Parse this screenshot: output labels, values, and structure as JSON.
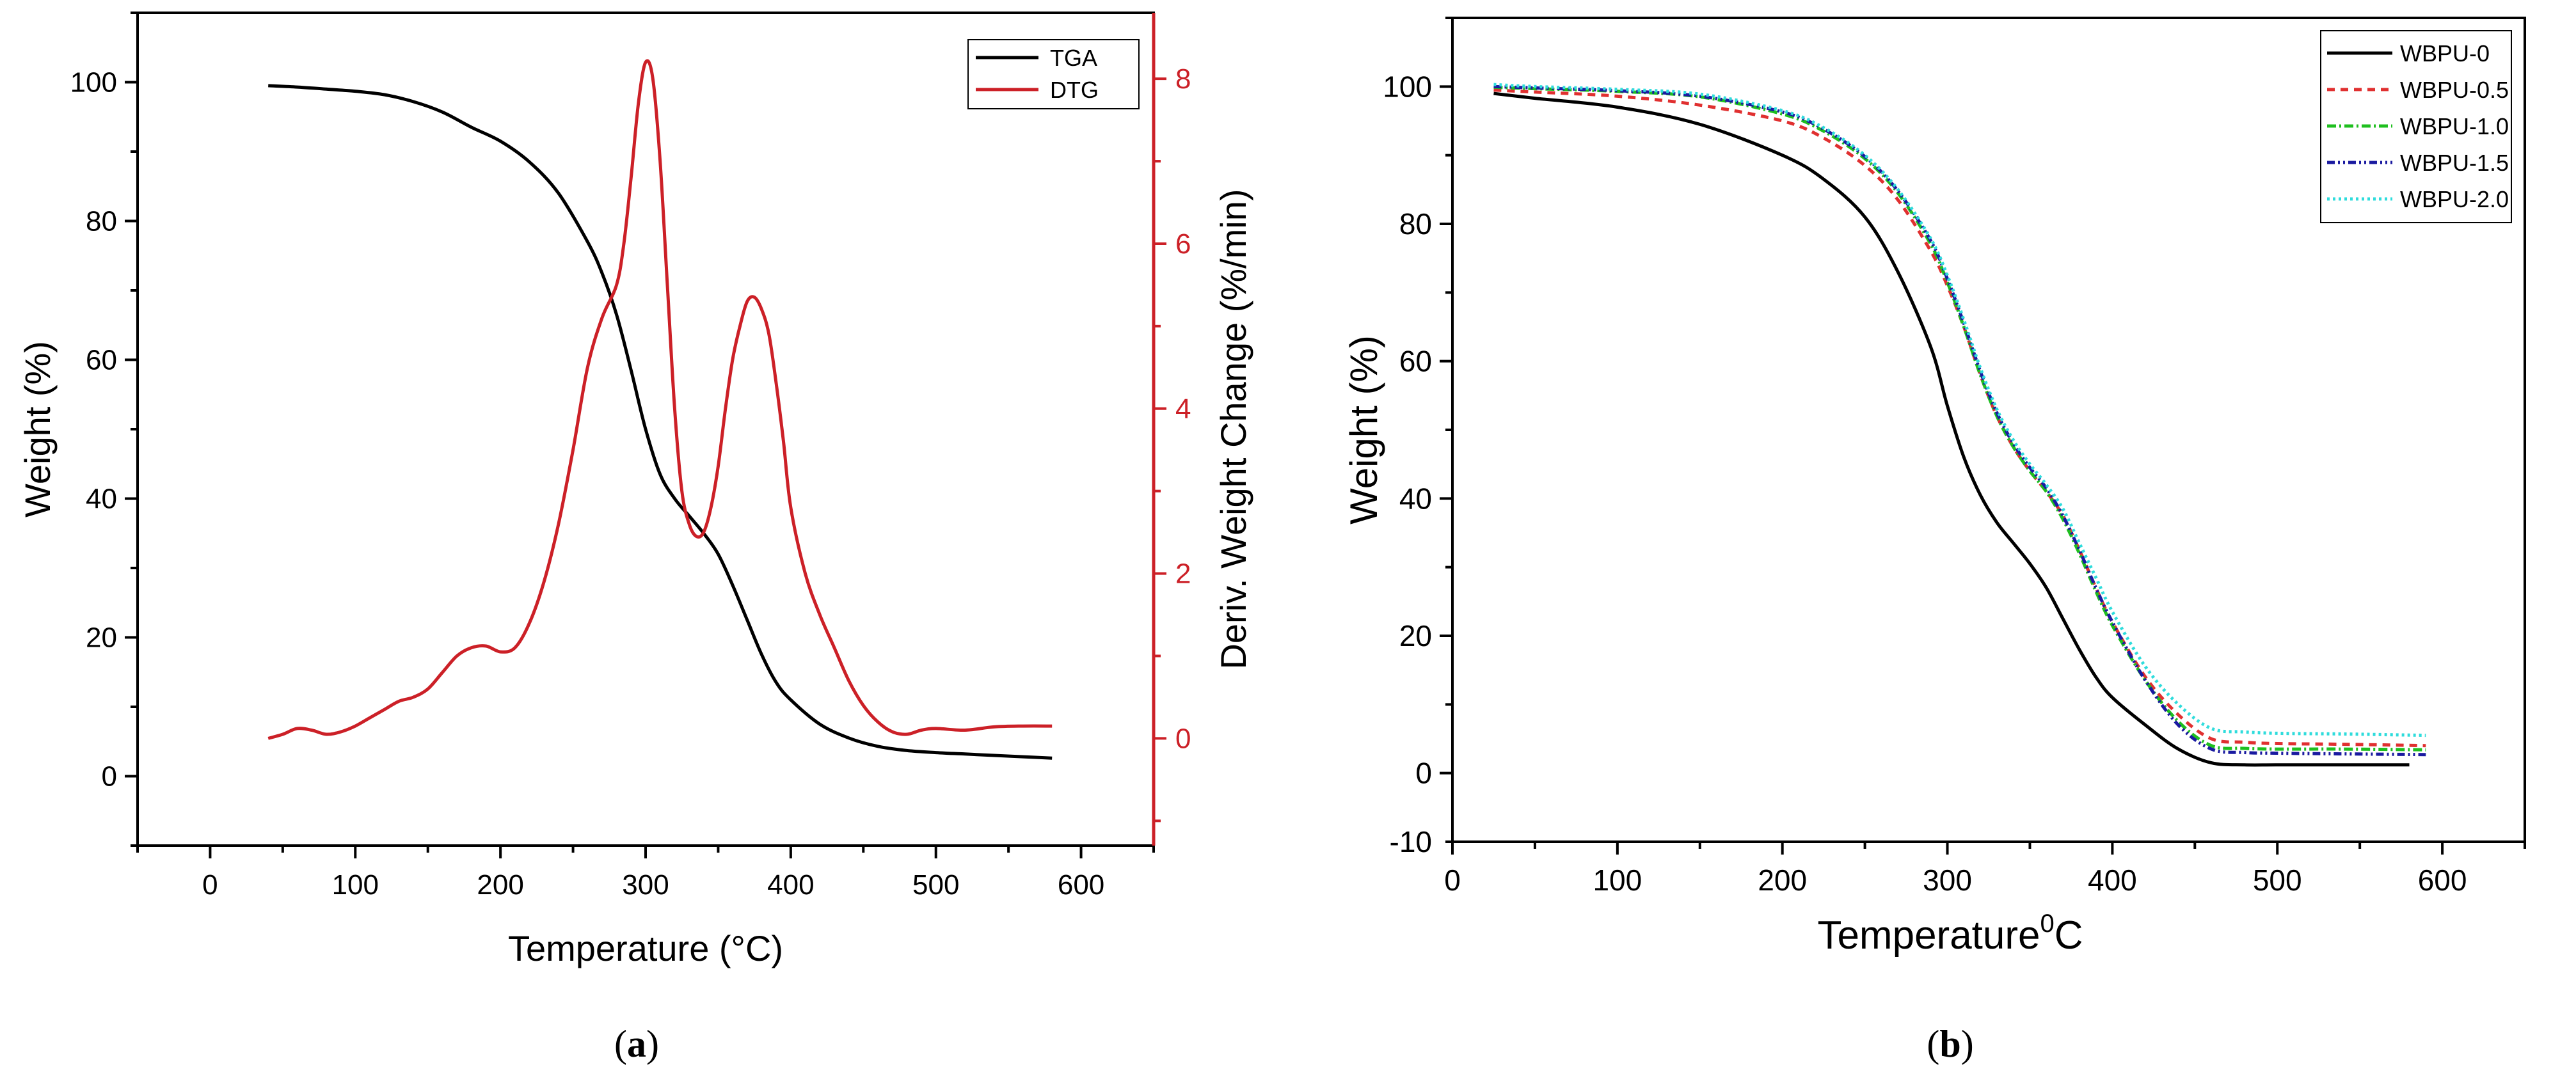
{
  "figure": {
    "panel_a_caption": "a",
    "panel_b_caption": "b"
  },
  "chart_data": [
    {
      "id": "a",
      "type": "line",
      "title": "",
      "xlabel": "Temperature (°C)",
      "ylabel": "Weight (%)",
      "y2label": "Deriv. Weight Change (%/min)",
      "xlim": [
        -50,
        650
      ],
      "ylim": [
        -10,
        110
      ],
      "y2lim": [
        -1.3,
        8.8
      ],
      "xticks": [
        0,
        100,
        200,
        300,
        400,
        500,
        600
      ],
      "yticks": [
        0,
        20,
        40,
        60,
        80,
        100
      ],
      "y2ticks": [
        0,
        2,
        4,
        6,
        8
      ],
      "legend_position": "top-right",
      "grid": false,
      "series": [
        {
          "name": "TGA",
          "axis": "left",
          "color": "#000000",
          "dash": "solid",
          "x": [
            40,
            60,
            80,
            100,
            120,
            140,
            160,
            180,
            200,
            220,
            240,
            260,
            270,
            280,
            290,
            300,
            310,
            320,
            330,
            340,
            350,
            360,
            370,
            380,
            390,
            400,
            420,
            440,
            460,
            480,
            500,
            520,
            540,
            560,
            580
          ],
          "y": [
            99.5,
            99.3,
            99.0,
            98.7,
            98.2,
            97.2,
            95.7,
            93.5,
            91.5,
            88.5,
            84.0,
            77.0,
            72.5,
            66.5,
            58.5,
            50.0,
            43.5,
            40.0,
            37.5,
            35.0,
            32.0,
            27.5,
            22.5,
            17.5,
            13.5,
            11.0,
            7.5,
            5.5,
            4.3,
            3.7,
            3.4,
            3.2,
            3.0,
            2.8,
            2.6
          ]
        },
        {
          "name": "DTG",
          "axis": "right",
          "color": "#cc2027",
          "dash": "solid",
          "x": [
            40,
            50,
            60,
            70,
            80,
            90,
            100,
            110,
            120,
            130,
            140,
            150,
            160,
            170,
            180,
            190,
            200,
            210,
            220,
            230,
            240,
            250,
            260,
            270,
            280,
            285,
            290,
            295,
            300,
            305,
            310,
            315,
            320,
            325,
            330,
            335,
            340,
            345,
            350,
            355,
            360,
            365,
            370,
            375,
            380,
            385,
            390,
            395,
            400,
            410,
            420,
            430,
            440,
            450,
            460,
            470,
            480,
            490,
            500,
            520,
            540,
            560,
            580
          ],
          "y": [
            0.0,
            0.05,
            0.12,
            0.1,
            0.05,
            0.08,
            0.15,
            0.25,
            0.35,
            0.45,
            0.5,
            0.6,
            0.8,
            1.0,
            1.1,
            1.12,
            1.05,
            1.1,
            1.4,
            1.9,
            2.6,
            3.5,
            4.5,
            5.1,
            5.5,
            6.0,
            6.8,
            7.7,
            8.2,
            8.0,
            7.0,
            5.5,
            4.0,
            3.0,
            2.6,
            2.45,
            2.5,
            2.8,
            3.3,
            4.0,
            4.6,
            5.0,
            5.3,
            5.35,
            5.2,
            4.9,
            4.3,
            3.6,
            2.8,
            2.0,
            1.5,
            1.1,
            0.7,
            0.4,
            0.2,
            0.08,
            0.05,
            0.1,
            0.12,
            0.1,
            0.14,
            0.15,
            0.15
          ]
        }
      ]
    },
    {
      "id": "b",
      "type": "line",
      "title": "",
      "xlabel": "Temperature",
      "xlabel_sup": "0",
      "xlabel_suffix": "C",
      "ylabel": "Weight (%)",
      "xlim": [
        0,
        650
      ],
      "ylim": [
        -10,
        110
      ],
      "xticks": [
        0,
        100,
        200,
        300,
        400,
        500,
        600
      ],
      "yticks": [
        0,
        20,
        40,
        60,
        80,
        100
      ],
      "legend_position": "top-right",
      "grid": false,
      "series": [
        {
          "name": "WBPU-0",
          "color": "#000000",
          "dash": "solid",
          "x": [
            25,
            50,
            100,
            150,
            200,
            225,
            250,
            270,
            290,
            300,
            310,
            320,
            330,
            340,
            350,
            360,
            370,
            380,
            390,
            400,
            420,
            440,
            460,
            480,
            500,
            540,
            580
          ],
          "y": [
            99.0,
            98.3,
            97.0,
            94.5,
            90.0,
            86.5,
            81.0,
            73.0,
            62.0,
            53.5,
            46.0,
            40.5,
            36.5,
            33.5,
            30.5,
            27.0,
            22.5,
            18.0,
            14.0,
            11.0,
            7.0,
            3.5,
            1.5,
            1.2,
            1.2,
            1.2,
            1.2
          ]
        },
        {
          "name": "WBPU-0.5",
          "color": "#e03030",
          "dash": "12,9",
          "x": [
            25,
            50,
            100,
            150,
            200,
            225,
            250,
            270,
            290,
            300,
            310,
            320,
            330,
            340,
            350,
            360,
            370,
            380,
            390,
            400,
            420,
            440,
            460,
            480,
            500,
            540,
            590
          ],
          "y": [
            99.5,
            99.2,
            98.6,
            97.3,
            95.0,
            92.5,
            88.5,
            83.5,
            76.0,
            71.0,
            65.0,
            58.0,
            52.0,
            47.5,
            44.0,
            41.0,
            37.5,
            32.5,
            27.0,
            22.0,
            14.0,
            8.5,
            5.0,
            4.5,
            4.3,
            4.2,
            4.0
          ]
        },
        {
          "name": "WBPU-1.0",
          "color": "#1fbf1f",
          "dash": "14,5,3,5",
          "x": [
            25,
            50,
            100,
            150,
            200,
            225,
            250,
            270,
            290,
            300,
            310,
            320,
            330,
            340,
            350,
            360,
            370,
            380,
            390,
            400,
            420,
            440,
            460,
            480,
            500,
            540,
            590
          ],
          "y": [
            99.9,
            99.7,
            99.3,
            98.5,
            96.0,
            93.5,
            89.5,
            84.5,
            77.0,
            71.5,
            65.0,
            58.0,
            52.0,
            47.5,
            44.0,
            41.0,
            37.0,
            32.0,
            26.5,
            21.5,
            13.5,
            7.5,
            4.0,
            3.6,
            3.5,
            3.5,
            3.4
          ]
        },
        {
          "name": "WBPU-1.5",
          "color": "#1a1aa0",
          "dash": "12,5,3,5,3,5",
          "x": [
            25,
            50,
            100,
            150,
            200,
            225,
            250,
            270,
            290,
            300,
            310,
            320,
            330,
            340,
            350,
            360,
            370,
            380,
            390,
            400,
            420,
            440,
            460,
            480,
            500,
            540,
            590
          ],
          "y": [
            100.0,
            99.8,
            99.4,
            98.6,
            96.3,
            93.8,
            89.8,
            84.8,
            77.5,
            72.0,
            65.5,
            58.5,
            52.5,
            48.0,
            44.5,
            41.5,
            37.5,
            32.5,
            27.0,
            22.0,
            13.5,
            7.0,
            3.5,
            3.0,
            2.9,
            2.8,
            2.7
          ]
        },
        {
          "name": "WBPU-2.0",
          "color": "#2fdcdc",
          "dash": "4,5",
          "x": [
            25,
            50,
            100,
            150,
            200,
            225,
            250,
            270,
            290,
            300,
            310,
            320,
            330,
            340,
            350,
            360,
            370,
            380,
            390,
            400,
            420,
            440,
            460,
            480,
            500,
            540,
            590
          ],
          "y": [
            100.3,
            100.0,
            99.6,
            98.9,
            96.5,
            94.0,
            90.0,
            85.0,
            77.8,
            72.5,
            66.0,
            59.0,
            53.0,
            48.5,
            45.0,
            42.0,
            38.5,
            33.5,
            28.5,
            23.5,
            15.5,
            10.0,
            6.5,
            6.0,
            5.8,
            5.7,
            5.5
          ]
        }
      ]
    }
  ]
}
